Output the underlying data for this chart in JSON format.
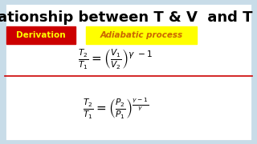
{
  "title": "Relationship between T & V  and T & P",
  "title_fontsize": 13,
  "title_color": "#000000",
  "bg_color": "#c8dce8",
  "inner_bg_color": "#ffffff",
  "derivation_text": "Derivation",
  "derivation_bg": "#cc0000",
  "derivation_fg": "#ffff00",
  "adiabatic_text": "Adiabatic process",
  "adiabatic_bg": "#ffff00",
  "adiabatic_fg": "#cc6600",
  "eq1": "$\\frac{T_2}{T_1} = \\left(\\frac{V_1}{V_2}\\right)^{\\gamma\\ -1}$",
  "eq2": "$\\frac{T_2}{T_1} = \\left(\\frac{P_2}{P_1}\\right)^{\\frac{\\gamma-1}{\\gamma}}$",
  "divider_color": "#cc0000",
  "eq_color": "#000000"
}
